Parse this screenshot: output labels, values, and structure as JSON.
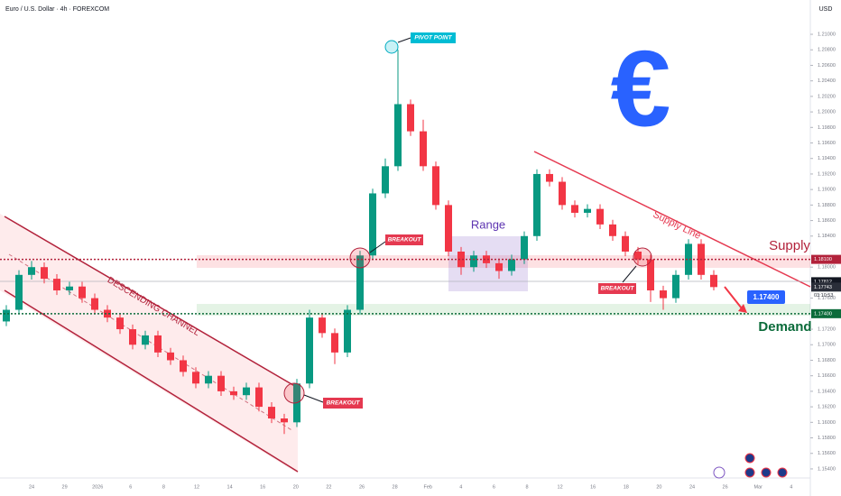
{
  "chart_data": {
    "type": "candlestick",
    "title": "Euro / U.S. Dollar · 4h · FOREXCOM",
    "currency": "USD",
    "timer": "03:10:53",
    "up_color": "#089981",
    "down_color": "#f23645",
    "categories": [
      "24",
      "29",
      "2026",
      "6",
      "8",
      "12",
      "14",
      "16",
      "20",
      "22",
      "26",
      "28",
      "Feb",
      "4",
      "6",
      "8",
      "12",
      "16",
      "18",
      "20",
      "24",
      "26",
      "Mar",
      "4"
    ],
    "open": [
      1.173,
      1.1745,
      1.179,
      1.18,
      1.1785,
      1.177,
      1.1775,
      1.176,
      1.1745,
      1.1735,
      1.172,
      1.17,
      1.1712,
      1.169,
      1.168,
      1.1665,
      1.165,
      1.166,
      1.164,
      1.1635,
      1.1645,
      1.162,
      1.1605,
      1.16,
      1.165,
      1.1735,
      1.1715,
      1.169,
      1.1745,
      1.1815,
      1.1895,
      1.193,
      1.201,
      1.1975,
      1.193,
      1.188,
      1.182,
      1.18,
      1.1815,
      1.1805,
      1.1795,
      1.181,
      1.184,
      1.192,
      1.191,
      1.188,
      1.187,
      1.1875,
      1.1855,
      1.184,
      1.182,
      1.181,
      1.177,
      1.176,
      1.179,
      1.183,
      1.179
    ],
    "high": [
      1.1751,
      1.1796,
      1.1808,
      1.1806,
      1.1791,
      1.1781,
      1.1781,
      1.1766,
      1.1751,
      1.1741,
      1.1726,
      1.1718,
      1.1718,
      1.1696,
      1.1686,
      1.1671,
      1.1666,
      1.1666,
      1.1646,
      1.1651,
      1.1651,
      1.1626,
      1.1611,
      1.1656,
      1.1745,
      1.1741,
      1.1721,
      1.1751,
      1.1821,
      1.1901,
      1.194,
      1.208,
      1.2016,
      1.199,
      1.1936,
      1.1886,
      1.1826,
      1.1821,
      1.1821,
      1.1811,
      1.1816,
      1.1846,
      1.1926,
      1.1926,
      1.1916,
      1.1886,
      1.1881,
      1.1881,
      1.1861,
      1.1846,
      1.1826,
      1.1816,
      1.1776,
      1.1796,
      1.1836,
      1.1836,
      1.1796
    ],
    "low": [
      1.1724,
      1.1739,
      1.1784,
      1.1779,
      1.1764,
      1.1764,
      1.1754,
      1.1739,
      1.1729,
      1.1714,
      1.1694,
      1.1694,
      1.1684,
      1.1674,
      1.1659,
      1.1644,
      1.1644,
      1.1634,
      1.1629,
      1.1629,
      1.1614,
      1.1599,
      1.1585,
      1.1594,
      1.1644,
      1.1709,
      1.1675,
      1.1684,
      1.1739,
      1.1809,
      1.1889,
      1.1924,
      1.1969,
      1.1924,
      1.1874,
      1.1814,
      1.179,
      1.1794,
      1.1799,
      1.1785,
      1.1789,
      1.1804,
      1.1834,
      1.1904,
      1.1874,
      1.1864,
      1.1864,
      1.1849,
      1.1834,
      1.1814,
      1.1804,
      1.1755,
      1.1745,
      1.1754,
      1.1784,
      1.1784,
      1.177
    ],
    "close": [
      1.1745,
      1.179,
      1.18,
      1.1785,
      1.177,
      1.1775,
      1.176,
      1.1745,
      1.1735,
      1.172,
      1.17,
      1.1712,
      1.169,
      1.168,
      1.1665,
      1.165,
      1.166,
      1.164,
      1.1635,
      1.1645,
      1.162,
      1.1605,
      1.16,
      1.165,
      1.1735,
      1.1715,
      1.169,
      1.1745,
      1.1815,
      1.1895,
      1.193,
      1.201,
      1.1975,
      1.193,
      1.188,
      1.182,
      1.18,
      1.1815,
      1.1805,
      1.1795,
      1.181,
      1.184,
      1.192,
      1.191,
      1.188,
      1.187,
      1.1875,
      1.1855,
      1.184,
      1.182,
      1.181,
      1.177,
      1.176,
      1.179,
      1.183,
      1.179,
      1.17743
    ],
    "ylim": [
      1.15167,
      1.21442
    ],
    "yticks": [
      {
        "value": 1.154,
        "label": "1.15400"
      },
      {
        "value": 1.156,
        "label": "1.15600"
      },
      {
        "value": 1.158,
        "label": "1.15800"
      },
      {
        "value": 1.16,
        "label": "1.16000"
      },
      {
        "value": 1.162,
        "label": "1.16200"
      },
      {
        "value": 1.164,
        "label": "1.16400"
      },
      {
        "value": 1.166,
        "label": "1.16600"
      },
      {
        "value": 1.168,
        "label": "1.16800"
      },
      {
        "value": 1.17,
        "label": "1.17000"
      },
      {
        "value": 1.172,
        "label": "1.17200"
      },
      {
        "value": 1.176,
        "label": "1.17600"
      },
      {
        "value": 1.18,
        "label": "1.18000"
      },
      {
        "value": 1.184,
        "label": "1.18400"
      },
      {
        "value": 1.186,
        "label": "1.18600"
      },
      {
        "value": 1.188,
        "label": "1.18800"
      },
      {
        "value": 1.19,
        "label": "1.19000"
      },
      {
        "value": 1.192,
        "label": "1.19200"
      },
      {
        "value": 1.194,
        "label": "1.19400"
      },
      {
        "value": 1.196,
        "label": "1.19600"
      },
      {
        "value": 1.198,
        "label": "1.19800"
      },
      {
        "value": 1.2,
        "label": "1.20000"
      },
      {
        "value": 1.202,
        "label": "1.20200"
      },
      {
        "value": 1.204,
        "label": "1.20400"
      },
      {
        "value": 1.206,
        "label": "1.20600"
      },
      {
        "value": 1.208,
        "label": "1.20800"
      },
      {
        "value": 1.21,
        "label": "1.21000"
      }
    ],
    "levels": [
      {
        "value": 1.181,
        "label": "1.18100",
        "color": "#b2223b"
      },
      {
        "value": 1.174,
        "label": "1.17400",
        "color": "#0b6b3a"
      }
    ],
    "price_tags": [
      {
        "value": 1.17812,
        "label": "1.17812",
        "color": "#131722"
      },
      {
        "value": 1.17743,
        "label": "1.17743",
        "color": "#2a2e39"
      }
    ],
    "annotations": {
      "pivot": "PIVOT POINT",
      "breakout": [
        "BREAKOUT",
        "BREAKOUT",
        "BREAKOUT"
      ],
      "range": "Range",
      "channel": "DESCENDING CHANNEL",
      "supply_line": "Supply Line",
      "supply": "Supply",
      "demand": "Demand",
      "target": "1.17400",
      "symbol": "€"
    }
  }
}
